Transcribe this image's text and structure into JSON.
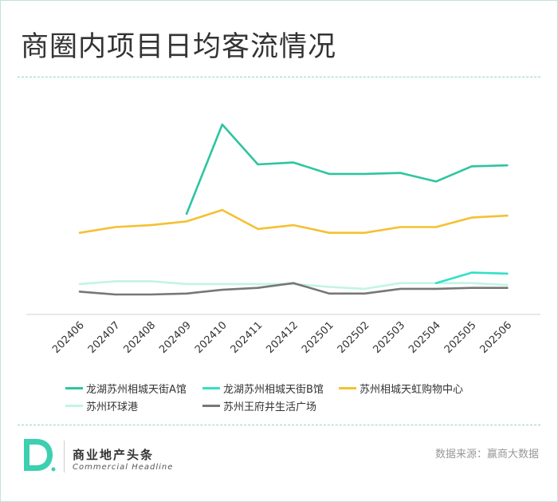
{
  "title": "商圈内项目日均客流情况",
  "chart_data": {
    "type": "line",
    "categories": [
      "202406",
      "202407",
      "202408",
      "202409",
      "202410",
      "202411",
      "202412",
      "202501",
      "202502",
      "202503",
      "202504",
      "202505",
      "202506"
    ],
    "ylim": [
      0,
      100
    ],
    "grid": false,
    "legend_position": "bottom",
    "series": [
      {
        "name": "龙湖苏州相城天街A馆",
        "color": "#2ec4a1",
        "values": [
          null,
          null,
          null,
          53,
          100,
          79,
          80,
          74,
          74,
          74.5,
          70,
          78,
          78.5
        ]
      },
      {
        "name": "龙湖苏州相城天街B馆",
        "color": "#33e0c8",
        "values": [
          null,
          null,
          null,
          null,
          null,
          null,
          null,
          null,
          null,
          null,
          16.5,
          22,
          21.5
        ]
      },
      {
        "name": "苏州相城天虹购物中心",
        "color": "#f5c032",
        "values": [
          43,
          46,
          47,
          49,
          55,
          45,
          47,
          43,
          43,
          46,
          46,
          51,
          52
        ]
      },
      {
        "name": "苏州环球港",
        "color": "#c2f4e6",
        "values": [
          16,
          17.5,
          17.5,
          16,
          16,
          16,
          16,
          14.5,
          13.5,
          16.5,
          16.5,
          16.5,
          15.5
        ]
      },
      {
        "name": "苏州王府井生活广场",
        "color": "#777777",
        "values": [
          12,
          10.5,
          10.5,
          11,
          13,
          14,
          16.5,
          11,
          11,
          13.5,
          13.5,
          14,
          14
        ]
      }
    ]
  },
  "brand": {
    "name_cn": "商业地产头条",
    "name_en": "Commercial Headline"
  },
  "source": "数据来源：赢商大数据"
}
